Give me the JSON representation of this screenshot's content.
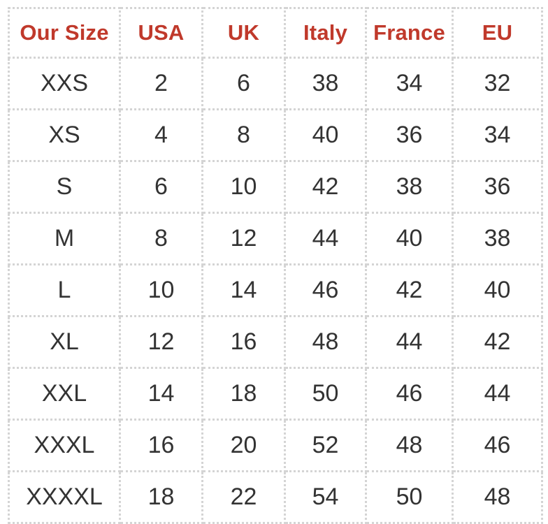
{
  "colors": {
    "header_text": "#c0392b",
    "body_text": "#333333",
    "border": "#d4d4d4"
  },
  "table": {
    "headers": [
      "Our Size",
      "USA",
      "UK",
      "Italy",
      "France",
      "EU"
    ],
    "rows": [
      [
        "XXS",
        "2",
        "6",
        "38",
        "34",
        "32"
      ],
      [
        "XS",
        "4",
        "8",
        "40",
        "36",
        "34"
      ],
      [
        "S",
        "6",
        "10",
        "42",
        "38",
        "36"
      ],
      [
        "M",
        "8",
        "12",
        "44",
        "40",
        "38"
      ],
      [
        "L",
        "10",
        "14",
        "46",
        "42",
        "40"
      ],
      [
        "XL",
        "12",
        "16",
        "48",
        "44",
        "42"
      ],
      [
        "XXL",
        "14",
        "18",
        "50",
        "46",
        "44"
      ],
      [
        "XXXL",
        "16",
        "20",
        "52",
        "48",
        "46"
      ],
      [
        "XXXXL",
        "18",
        "22",
        "54",
        "50",
        "48"
      ]
    ]
  }
}
